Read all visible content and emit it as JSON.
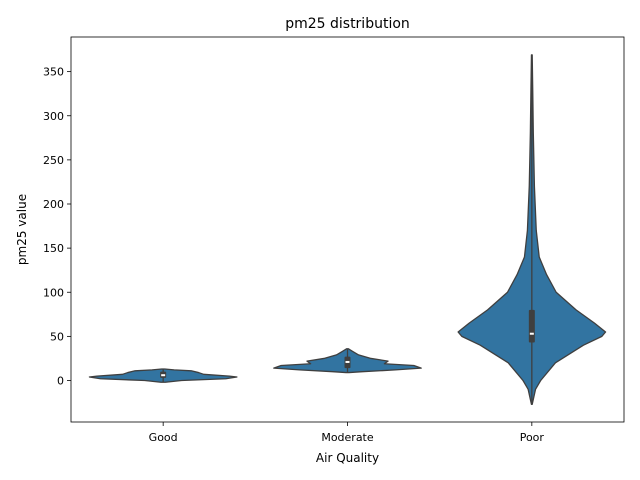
{
  "chart_data": {
    "type": "violin",
    "title": "pm25 distribution",
    "xlabel": "Air Quality",
    "ylabel": "pm25 value",
    "categories": [
      "Good",
      "Moderate",
      "Poor"
    ],
    "ylim": [
      -25,
      385
    ],
    "yticks": [
      0,
      50,
      100,
      150,
      200,
      250,
      300,
      350
    ],
    "grid": false,
    "colors": {
      "violin": "#3274a1",
      "edge": "#3f3f3f",
      "box": "#3f3f3f",
      "median": "#ffffff"
    },
    "distributions": [
      {
        "category": "Good",
        "min": -2,
        "max": 13,
        "q1": 3,
        "median": 6,
        "q3": 10,
        "profile": [
          [
            -2,
            0.03
          ],
          [
            0,
            0.25
          ],
          [
            2,
            0.85
          ],
          [
            4,
            1.0
          ],
          [
            5,
            0.9
          ],
          [
            7,
            0.55
          ],
          [
            9,
            0.48
          ],
          [
            11,
            0.38
          ],
          [
            12,
            0.15
          ],
          [
            13,
            0.02
          ]
        ]
      },
      {
        "category": "Moderate",
        "min": 9,
        "max": 36,
        "q1": 14,
        "median": 21,
        "q3": 27,
        "profile": [
          [
            9,
            0.02
          ],
          [
            10,
            0.2
          ],
          [
            12,
            0.65
          ],
          [
            14,
            1.0
          ],
          [
            17,
            0.9
          ],
          [
            19,
            0.5
          ],
          [
            22,
            0.55
          ],
          [
            25,
            0.32
          ],
          [
            29,
            0.15
          ],
          [
            33,
            0.07
          ],
          [
            36,
            0.01
          ]
        ]
      },
      {
        "category": "Poor",
        "min": -27,
        "max": 369,
        "q1": 43,
        "median": 53,
        "q3": 80,
        "profile": [
          [
            -27,
            0.005
          ],
          [
            -10,
            0.05
          ],
          [
            0,
            0.12
          ],
          [
            20,
            0.32
          ],
          [
            40,
            0.7
          ],
          [
            50,
            0.95
          ],
          [
            55,
            1.0
          ],
          [
            65,
            0.85
          ],
          [
            80,
            0.6
          ],
          [
            100,
            0.33
          ],
          [
            120,
            0.2
          ],
          [
            140,
            0.1
          ],
          [
            170,
            0.06
          ],
          [
            220,
            0.035
          ],
          [
            280,
            0.02
          ],
          [
            330,
            0.012
          ],
          [
            369,
            0.005
          ]
        ]
      }
    ]
  }
}
